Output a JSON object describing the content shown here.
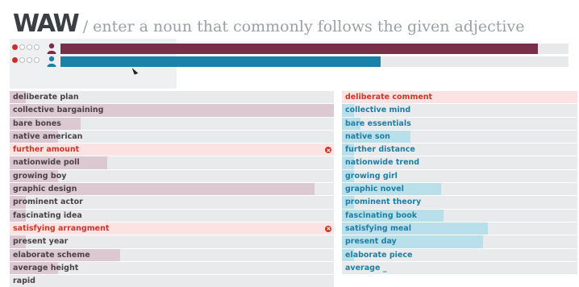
{
  "header": {
    "logo": "WAW",
    "prompt": "/ enter a noun that commonly follows the given adjective"
  },
  "colors": {
    "p1": "#7a2f48",
    "p2": "#1a82a8",
    "leftBar": "#dcc8d1",
    "rightBar": "#b9dfeb"
  },
  "players": [
    {
      "dots": [
        "miss",
        "empty",
        "empty",
        "empty"
      ],
      "icon": "user-icon",
      "progress": 0.94
    },
    {
      "dots": [
        "miss",
        "empty",
        "empty",
        "empty"
      ],
      "icon": "user-icon",
      "progress": 0.63
    }
  ],
  "left": [
    {
      "text": "deliberate plan",
      "score": 0.05,
      "error": false
    },
    {
      "text": "collective bargaining",
      "score": 1.0,
      "error": false
    },
    {
      "text": "bare bones",
      "score": 0.22,
      "error": false
    },
    {
      "text": "native american",
      "score": 0.15,
      "error": false
    },
    {
      "text": "further amount",
      "score": 0,
      "error": true
    },
    {
      "text": "nationwide poll",
      "score": 0.3,
      "error": false
    },
    {
      "text": "growing boy",
      "score": 0.15,
      "error": false
    },
    {
      "text": "graphic design",
      "score": 0.94,
      "error": false
    },
    {
      "text": "prominent actor",
      "score": 0.05,
      "error": false
    },
    {
      "text": "fascinating idea",
      "score": 0.05,
      "error": false
    },
    {
      "text": "satisfying arrangment",
      "score": 0,
      "error": true
    },
    {
      "text": "present year",
      "score": 0.05,
      "error": false
    },
    {
      "text": "elaborate scheme",
      "score": 0.34,
      "error": false
    },
    {
      "text": "average height",
      "score": 0.15,
      "error": false
    },
    {
      "text": "rapid",
      "score": 0,
      "error": false
    }
  ],
  "right": [
    {
      "text": "deliberate comment",
      "score": 0,
      "error": true
    },
    {
      "text": "collective mind",
      "score": 0.05,
      "error": false
    },
    {
      "text": "bare essentials",
      "score": 0.08,
      "error": false
    },
    {
      "text": "native son",
      "score": 0.29,
      "error": false
    },
    {
      "text": "further distance",
      "score": 0.05,
      "error": false
    },
    {
      "text": "nationwide trend",
      "score": 0.05,
      "error": false
    },
    {
      "text": "growing girl",
      "score": 0.05,
      "error": false
    },
    {
      "text": "graphic novel",
      "score": 0.42,
      "error": false
    },
    {
      "text": "prominent theory",
      "score": 0.05,
      "error": false
    },
    {
      "text": "fascinating book",
      "score": 0.43,
      "error": false
    },
    {
      "text": "satisfying meal",
      "score": 0.62,
      "error": false
    },
    {
      "text": "present day",
      "score": 0.6,
      "error": false
    },
    {
      "text": "elaborate piece",
      "score": 0.05,
      "error": false
    },
    {
      "text": "average _",
      "score": 0,
      "error": false
    }
  ]
}
